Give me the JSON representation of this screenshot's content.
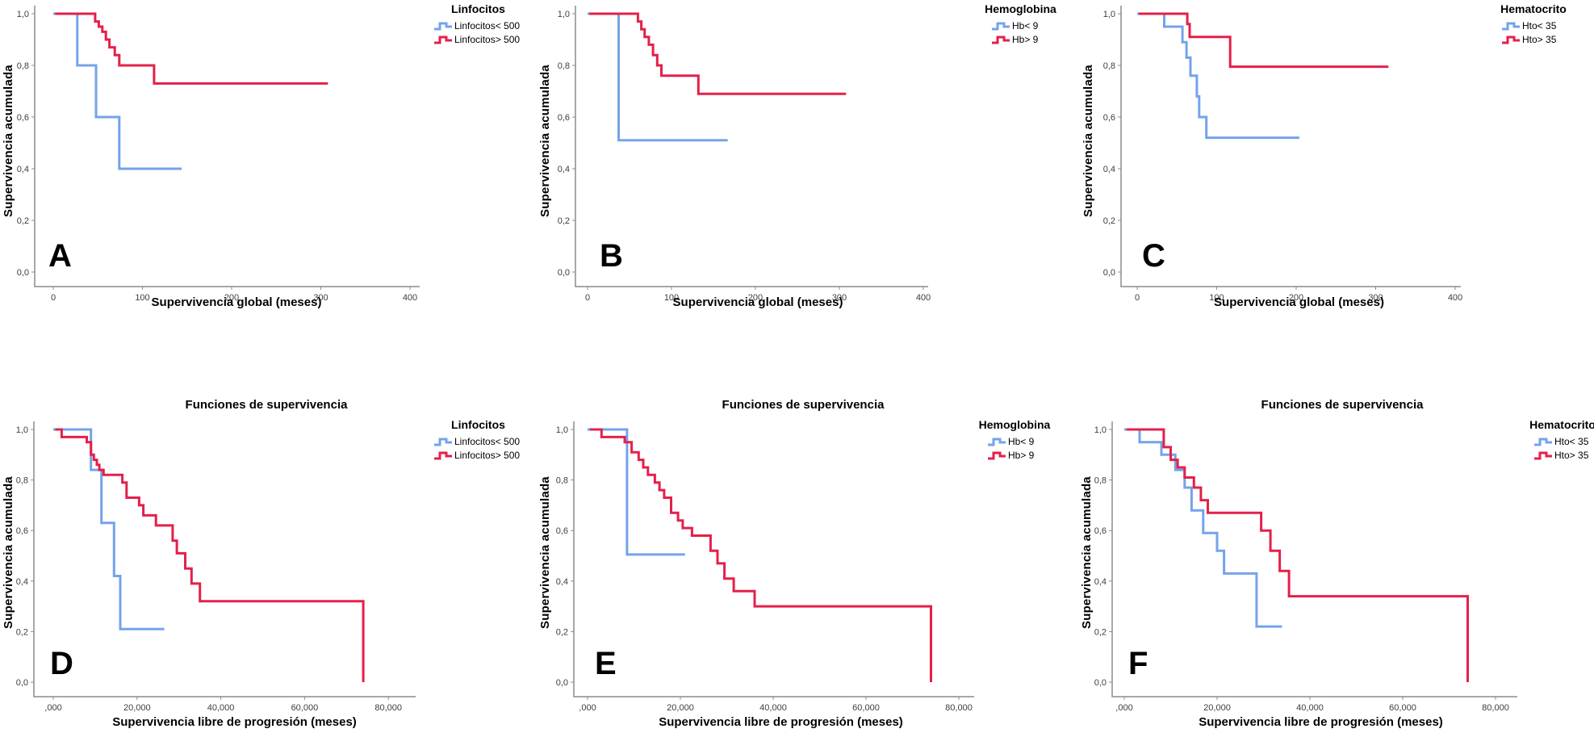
{
  "figure_colors": {
    "curve_blue": "#74a3ea",
    "curve_red": "#e4204a",
    "axis_gray": "#8c8c8c",
    "tick_text": "#3d3d3d"
  },
  "chart_data": [
    {
      "type": "line",
      "panel_letter": "A",
      "title": "",
      "xlabel": "Supervivencia global (meses)",
      "ylabel": "Supervivencia acumulada",
      "legend_title": "Linfocitos",
      "xlim": [
        0,
        430
      ],
      "ylim": [
        0,
        1.05
      ],
      "grid": false,
      "legend_position": "top-right-outside",
      "xticks": [
        0,
        100,
        200,
        300,
        400
      ],
      "xtick_labels": [
        "0",
        "100",
        "200",
        "300",
        "400"
      ],
      "yticks": [
        0,
        0.2,
        0.4,
        0.6,
        0.8,
        1.0
      ],
      "ytick_labels": [
        "0,0",
        "0,2",
        "0,4",
        "0,6",
        "0,8",
        "1,0"
      ],
      "series": [
        {
          "name": "Linfocitos< 500",
          "color": "#74a3ea",
          "points": [
            [
              0,
              1.0
            ],
            [
              27,
              0.8
            ],
            [
              48,
              0.6
            ],
            [
              74,
              0.4
            ]
          ],
          "end": 144
        },
        {
          "name": "Linfocitos> 500",
          "color": "#e4204a",
          "points": [
            [
              2,
              1.0
            ],
            [
              47,
              0.97
            ],
            [
              51,
              0.95
            ],
            [
              55,
              0.93
            ],
            [
              59,
              0.9
            ],
            [
              63,
              0.87
            ],
            [
              69,
              0.84
            ],
            [
              74,
              0.8
            ],
            [
              113,
              0.73
            ]
          ],
          "end": 308
        }
      ]
    },
    {
      "type": "line",
      "panel_letter": "B",
      "title": "",
      "xlabel": "Supervivencia global (meses)",
      "ylabel": "Supervivencia acumulada",
      "legend_title": "Hemoglobina",
      "xlim": [
        0,
        430
      ],
      "ylim": [
        0,
        1.05
      ],
      "grid": false,
      "legend_position": "top-right-outside",
      "xticks": [
        0,
        100,
        200,
        300,
        400
      ],
      "xtick_labels": [
        "0",
        "100",
        "200",
        "300",
        "400"
      ],
      "yticks": [
        0,
        0.2,
        0.4,
        0.6,
        0.8,
        1.0
      ],
      "ytick_labels": [
        "0,0",
        "0,2",
        "0,4",
        "0,6",
        "0,8",
        "1,0"
      ],
      "series": [
        {
          "name": "Hb< 9",
          "color": "#74a3ea",
          "points": [
            [
              0,
              1.0
            ],
            [
              37,
              0.51
            ]
          ],
          "end": 167
        },
        {
          "name": "Hb> 9",
          "color": "#e4204a",
          "points": [
            [
              2,
              1.0
            ],
            [
              60,
              0.97
            ],
            [
              64,
              0.94
            ],
            [
              68,
              0.91
            ],
            [
              73,
              0.88
            ],
            [
              78,
              0.84
            ],
            [
              83,
              0.8
            ],
            [
              88,
              0.76
            ],
            [
              132,
              0.69
            ]
          ],
          "end": 308
        }
      ]
    },
    {
      "type": "line",
      "panel_letter": "C",
      "title": "",
      "xlabel": "Supervivencia global (meses)",
      "ylabel": "Supervivencia acumulada",
      "legend_title": "Hematocrito",
      "xlim": [
        0,
        430
      ],
      "ylim": [
        0,
        1.05
      ],
      "grid": false,
      "legend_position": "top-right-outside",
      "xticks": [
        0,
        100,
        200,
        300,
        400
      ],
      "xtick_labels": [
        "0",
        "100",
        "200",
        "300",
        "400"
      ],
      "yticks": [
        0,
        0.2,
        0.4,
        0.6,
        0.8,
        1.0
      ],
      "ytick_labels": [
        "0,0",
        "0,2",
        "0,4",
        "0,6",
        "0,8",
        "1,0"
      ],
      "series": [
        {
          "name": "Hto< 35",
          "color": "#74a3ea",
          "points": [
            [
              0,
              1.0
            ],
            [
              34,
              0.95
            ],
            [
              57,
              0.89
            ],
            [
              62,
              0.83
            ],
            [
              67,
              0.76
            ],
            [
              75,
              0.68
            ],
            [
              78,
              0.6
            ],
            [
              87,
              0.52
            ]
          ],
          "end": 204
        },
        {
          "name": "Hto> 35",
          "color": "#e4204a",
          "points": [
            [
              2,
              1.0
            ],
            [
              63,
              0.96
            ],
            [
              66,
              0.91
            ],
            [
              117,
              0.795
            ]
          ],
          "end": 316
        }
      ]
    },
    {
      "type": "line",
      "panel_letter": "D",
      "title": "Funciones de supervivencia",
      "xlabel": "Supervivencia libre de progresión (meses)",
      "ylabel": "Supervivencia acumulada",
      "legend_title": "Linfocitos",
      "xlim": [
        0,
        87
      ],
      "ylim": [
        0,
        1.05
      ],
      "grid": false,
      "legend_position": "top-right-outside",
      "xticks": [
        0,
        20,
        40,
        60,
        80
      ],
      "xtick_labels": [
        ",000",
        "20,000",
        "40,000",
        "60,000",
        "80,000"
      ],
      "yticks": [
        0,
        0.2,
        0.4,
        0.6,
        0.8,
        1.0
      ],
      "ytick_labels": [
        "0,0",
        "0,2",
        "0,4",
        "0,6",
        "0,8",
        "1,0"
      ],
      "series": [
        {
          "name": "Linfocitos< 500",
          "color": "#74a3ea",
          "points": [
            [
              0,
              1.0
            ],
            [
              9,
              0.84
            ],
            [
              11.5,
              0.63
            ],
            [
              14.5,
              0.42
            ],
            [
              16,
              0.21
            ]
          ],
          "end": 26.5
        },
        {
          "name": "Linfocitos> 500",
          "color": "#e4204a",
          "points": [
            [
              0.5,
              1.0
            ],
            [
              2,
              0.97
            ],
            [
              8,
              0.95
            ],
            [
              9,
              0.9
            ],
            [
              9.7,
              0.88
            ],
            [
              10.4,
              0.86
            ],
            [
              11,
              0.84
            ],
            [
              12,
              0.82
            ],
            [
              16.5,
              0.79
            ],
            [
              17.5,
              0.73
            ],
            [
              20.5,
              0.7
            ],
            [
              21.5,
              0.66
            ],
            [
              24.5,
              0.62
            ],
            [
              28.5,
              0.56
            ],
            [
              29.5,
              0.51
            ],
            [
              31.5,
              0.45
            ],
            [
              33,
              0.39
            ],
            [
              35,
              0.32
            ],
            [
              74,
              0.0
            ]
          ],
          "end": 74
        }
      ]
    },
    {
      "type": "line",
      "panel_letter": "E",
      "title": "Funciones de supervivencia",
      "xlabel": "Supervivencia libre de progresión (meses)",
      "ylabel": "Supervivencia acumulada",
      "legend_title": "Hemoglobina",
      "xlim": [
        0,
        87
      ],
      "ylim": [
        0,
        1.05
      ],
      "grid": false,
      "legend_position": "top-right-outside",
      "xticks": [
        0,
        20,
        40,
        60,
        80
      ],
      "xtick_labels": [
        ",000",
        "20,000",
        "40,000",
        "60,000",
        "80,000"
      ],
      "yticks": [
        0,
        0.2,
        0.4,
        0.6,
        0.8,
        1.0
      ],
      "ytick_labels": [
        "0,0",
        "0,2",
        "0,4",
        "0,6",
        "0,8",
        "1,0"
      ],
      "series": [
        {
          "name": "Hb< 9",
          "color": "#74a3ea",
          "points": [
            [
              0,
              1.0
            ],
            [
              8.5,
              0.505
            ]
          ],
          "end": 21
        },
        {
          "name": "Hb> 9",
          "color": "#e4204a",
          "points": [
            [
              0.5,
              1.0
            ],
            [
              3,
              0.97
            ],
            [
              8,
              0.95
            ],
            [
              9.5,
              0.91
            ],
            [
              11,
              0.88
            ],
            [
              12,
              0.85
            ],
            [
              13,
              0.82
            ],
            [
              14.5,
              0.79
            ],
            [
              15.5,
              0.76
            ],
            [
              16.5,
              0.73
            ],
            [
              18,
              0.67
            ],
            [
              19.5,
              0.64
            ],
            [
              20.5,
              0.61
            ],
            [
              22.5,
              0.58
            ],
            [
              26.5,
              0.52
            ],
            [
              28,
              0.47
            ],
            [
              29.5,
              0.41
            ],
            [
              31.5,
              0.36
            ],
            [
              36,
              0.3
            ],
            [
              74,
              0.0
            ]
          ],
          "end": 74
        }
      ]
    },
    {
      "type": "line",
      "panel_letter": "F",
      "title": "Funciones de supervivencia",
      "xlabel": "Supervivencia libre de progresión (meses)",
      "ylabel": "Supervivencia acumulada",
      "legend_title": "Hematocrito",
      "xlim": [
        0,
        87
      ],
      "ylim": [
        0,
        1.05
      ],
      "grid": false,
      "legend_position": "top-right-outside",
      "xticks": [
        0,
        20,
        40,
        60,
        80
      ],
      "xtick_labels": [
        ",000",
        "20,000",
        "40,000",
        "60,000",
        "80,000"
      ],
      "yticks": [
        0,
        0.2,
        0.4,
        0.6,
        0.8,
        1.0
      ],
      "ytick_labels": [
        "0,0",
        "0,2",
        "0,4",
        "0,6",
        "0,8",
        "1,0"
      ],
      "series": [
        {
          "name": "Hto< 35",
          "color": "#74a3ea",
          "points": [
            [
              0,
              1.0
            ],
            [
              3.3,
              0.95
            ],
            [
              8,
              0.9
            ],
            [
              11,
              0.84
            ],
            [
              13,
              0.77
            ],
            [
              14.5,
              0.68
            ],
            [
              17,
              0.59
            ],
            [
              20,
              0.52
            ],
            [
              21.5,
              0.43
            ],
            [
              28.5,
              0.22
            ]
          ],
          "end": 34
        },
        {
          "name": "Hto> 35",
          "color": "#e4204a",
          "points": [
            [
              0.5,
              1.0
            ],
            [
              8.5,
              0.93
            ],
            [
              10,
              0.88
            ],
            [
              11.5,
              0.85
            ],
            [
              13,
              0.81
            ],
            [
              15,
              0.77
            ],
            [
              16.5,
              0.72
            ],
            [
              18,
              0.67
            ],
            [
              29.5,
              0.6
            ],
            [
              31.5,
              0.52
            ],
            [
              33.5,
              0.44
            ],
            [
              35.5,
              0.34
            ],
            [
              74,
              0.0
            ]
          ],
          "end": 74
        }
      ]
    }
  ]
}
